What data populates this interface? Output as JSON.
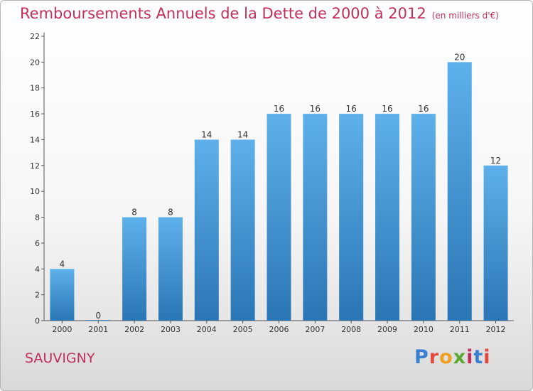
{
  "header": {
    "title": "Remboursements Annuels de la Dette de 2000 à 2012",
    "subtitle": "(en milliers d'€)"
  },
  "footer": {
    "city": "SAUVIGNY",
    "logo": "Proxiti",
    "logo_colors": [
      "#3a7fd0",
      "#e24a3b",
      "#f0a020",
      "#5aa830",
      "#c0305a",
      "#3a7fd0",
      "#e24a3b"
    ]
  },
  "colors": {
    "title": "#c0305a",
    "bar_top": "#5eb0ea",
    "bar_bottom": "#2a76b4",
    "axis": "#555555"
  },
  "chart_data": {
    "type": "bar",
    "title": "Remboursements Annuels de la Dette de 2000 à 2012",
    "subtitle": "(en milliers d'€)",
    "categories": [
      "2000",
      "2001",
      "2002",
      "2003",
      "2004",
      "2005",
      "2006",
      "2007",
      "2008",
      "2009",
      "2010",
      "2011",
      "2012"
    ],
    "values": [
      4,
      0,
      8,
      8,
      14,
      14,
      16,
      16,
      16,
      16,
      16,
      20,
      12
    ],
    "yticks": [
      0,
      2,
      4,
      6,
      8,
      10,
      12,
      14,
      16,
      18,
      20,
      22
    ],
    "ylim": [
      0,
      22
    ],
    "xlabel": "",
    "ylabel": "",
    "grid": false,
    "legend": "none"
  }
}
